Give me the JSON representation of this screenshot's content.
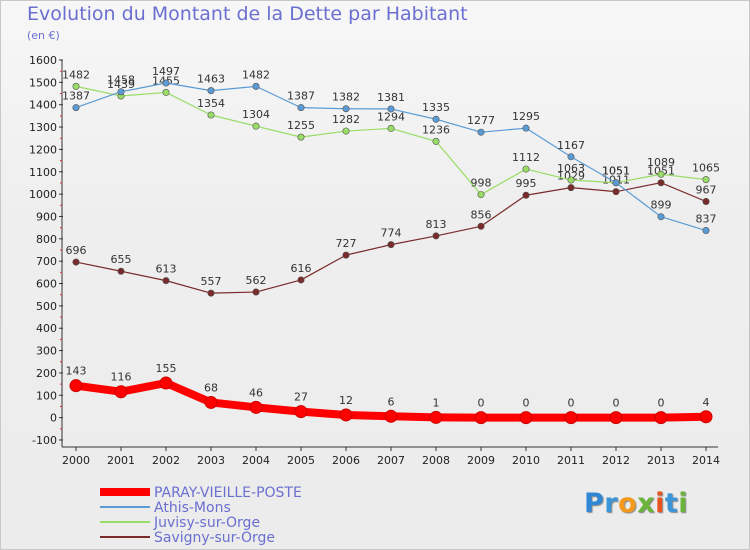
{
  "header": {
    "title": "Evolution du Montant de la Dette par Habitant",
    "subtitle": "(en €)"
  },
  "logo": {
    "letters": [
      "P",
      "r",
      "o",
      "x",
      "i",
      "t",
      "i"
    ],
    "colors": [
      "#2f86d4",
      "#3c95d8",
      "#f39a1d",
      "#6ab43a",
      "#e8541e",
      "#3c95d8",
      "#6ab43a"
    ]
  },
  "chart_data": {
    "type": "line",
    "title": "Evolution du Montant de la Dette par Habitant",
    "subtitle": "(en €)",
    "xlabel": "",
    "ylabel": "",
    "x": [
      "2000",
      "2001",
      "2002",
      "2003",
      "2004",
      "2005",
      "2006",
      "2007",
      "2008",
      "2009",
      "2010",
      "2011",
      "2012",
      "2013",
      "2014"
    ],
    "yticks": [
      -100,
      0,
      100,
      200,
      300,
      400,
      500,
      600,
      700,
      800,
      900,
      1000,
      1100,
      1200,
      1300,
      1400,
      1500,
      1600
    ],
    "ylim": [
      -100,
      1600
    ],
    "grid": false,
    "legend_position": "bottom-left",
    "series": [
      {
        "name": "PARAY-VIEILLE-POSTE",
        "color": "#ff0000",
        "emphasis": true,
        "values": [
          143,
          116,
          155,
          68,
          46,
          27,
          12,
          6,
          1,
          0,
          0,
          0,
          0,
          0,
          4
        ]
      },
      {
        "name": "Athis-Mons",
        "color": "#5b9bd5",
        "values": [
          1387,
          1458,
          1497,
          1463,
          1482,
          1387,
          1382,
          1381,
          1335,
          1277,
          1295,
          1167,
          1051,
          899,
          837
        ]
      },
      {
        "name": "Juvisy-sur-Orge",
        "color": "#99dd66",
        "values": [
          1482,
          1439,
          1455,
          1354,
          1304,
          1255,
          1282,
          1294,
          1236,
          998,
          1112,
          1063,
          1051,
          1089,
          1065
        ]
      },
      {
        "name": "Savigny-sur-Orge",
        "color": "#7a2a2a",
        "values": [
          696,
          655,
          613,
          557,
          562,
          616,
          727,
          774,
          813,
          856,
          995,
          1029,
          1011,
          1051,
          967
        ]
      }
    ]
  }
}
